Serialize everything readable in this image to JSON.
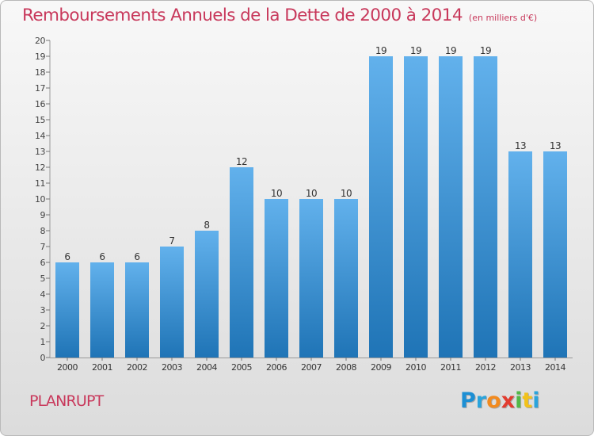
{
  "header": {
    "title": "Remboursements Annuels de la Dette de 2000 à 2014",
    "unit": "(en milliers d'€)"
  },
  "footer": {
    "commune": "PLANRUPT",
    "logo_letters": [
      "P",
      "r",
      "o",
      "x",
      "i",
      "t",
      "i"
    ],
    "logo_colors": [
      "#1c8fd4",
      "#2aa4dc",
      "#f28a1e",
      "#e23c2f",
      "#52b847",
      "#f2c21b",
      "#2aa4dc"
    ]
  },
  "colors": {
    "bar_top": "#62b1ec",
    "bar_bottom": "#1f74b6",
    "accent": "#c8385b",
    "grid": "#9a9a9a"
  },
  "chart_data": {
    "type": "bar",
    "title": "Remboursements Annuels de la Dette de 2000 à 2014",
    "xlabel": "",
    "ylabel": "en milliers d'€",
    "categories": [
      "2000",
      "2001",
      "2002",
      "2003",
      "2004",
      "2005",
      "2006",
      "2007",
      "2008",
      "2009",
      "2010",
      "2011",
      "2012",
      "2013",
      "2014"
    ],
    "values": [
      6,
      6,
      6,
      7,
      8,
      12,
      10,
      10,
      10,
      19,
      19,
      19,
      19,
      13,
      13
    ],
    "ylim": [
      0,
      20
    ],
    "yticks": [
      "0",
      "1",
      "2",
      "3",
      "4",
      "5",
      "6",
      "7",
      "8",
      "9",
      "10",
      "11",
      "12",
      "13",
      "14",
      "15",
      "16",
      "17",
      "18",
      "19",
      "20"
    ],
    "grid": false,
    "legend": "none"
  }
}
